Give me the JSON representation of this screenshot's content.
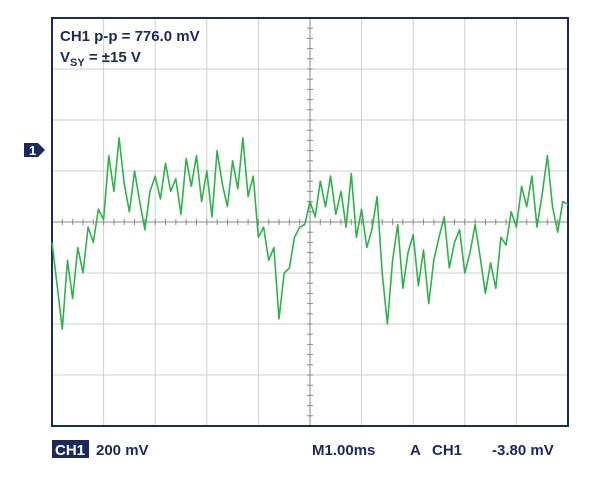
{
  "chart_data": {
    "type": "line",
    "annotations": {
      "measure": "CH1 p-p = 776.0 mV",
      "supply_v": "V",
      "supply_sub": "SY",
      "supply_rest": " = ±15 V"
    },
    "footer": {
      "channel": "CH1",
      "scale": "200 mV",
      "timebase": "M1.00ms",
      "trigger": "A",
      "trigger_channel": "CH1",
      "trigger_level": "-3.80 mV"
    },
    "marker": "1",
    "xlim": [
      0,
      10
    ],
    "ylim": [
      -800,
      800
    ],
    "color": "#2db34a",
    "x": [
      0,
      0.1,
      0.2,
      0.3,
      0.4,
      0.5,
      0.6,
      0.7,
      0.8,
      0.9,
      1.0,
      1.1,
      1.2,
      1.3,
      1.4,
      1.5,
      1.6,
      1.7,
      1.8,
      1.9,
      2.0,
      2.1,
      2.2,
      2.3,
      2.4,
      2.5,
      2.6,
      2.7,
      2.8,
      2.9,
      3.0,
      3.1,
      3.2,
      3.3,
      3.4,
      3.5,
      3.6,
      3.7,
      3.8,
      3.9,
      4.0,
      4.1,
      4.2,
      4.3,
      4.4,
      4.5,
      4.6,
      4.7,
      4.8,
      4.9,
      5.0,
      5.1,
      5.2,
      5.3,
      5.4,
      5.5,
      5.6,
      5.7,
      5.8,
      5.9,
      6.0,
      6.1,
      6.2,
      6.3,
      6.4,
      6.5,
      6.6,
      6.7,
      6.8,
      6.9,
      7.0,
      7.1,
      7.2,
      7.3,
      7.4,
      7.5,
      7.6,
      7.7,
      7.8,
      7.9,
      8.0,
      8.1,
      8.2,
      8.3,
      8.4,
      8.5,
      8.6,
      8.7,
      8.8,
      8.9,
      9.0,
      9.1,
      9.2,
      9.3,
      9.4,
      9.5,
      9.6,
      9.7,
      9.8,
      9.9,
      10.0
    ],
    "values": [
      -80,
      -250,
      -420,
      -150,
      -300,
      -100,
      -200,
      -20,
      -80,
      50,
      10,
      260,
      120,
      330,
      150,
      40,
      200,
      80,
      -30,
      120,
      180,
      90,
      230,
      120,
      170,
      30,
      250,
      140,
      260,
      80,
      200,
      20,
      280,
      150,
      60,
      240,
      130,
      330,
      100,
      180,
      -60,
      -20,
      -150,
      -100,
      -380,
      -200,
      -180,
      -60,
      -20,
      -10,
      80,
      20,
      160,
      60,
      180,
      30,
      120,
      -20,
      190,
      -60,
      50,
      -100,
      -30,
      100,
      -200,
      -400,
      -150,
      -10,
      -260,
      -120,
      -50,
      -250,
      -110,
      -320,
      -150,
      -60,
      20,
      -180,
      -80,
      -30,
      -200,
      -120,
      -10,
      -140,
      -280,
      -160,
      -260,
      -60,
      -90,
      40,
      -20,
      140,
      60,
      180,
      -20,
      110,
      260,
      60,
      -40,
      80,
      70
    ]
  }
}
